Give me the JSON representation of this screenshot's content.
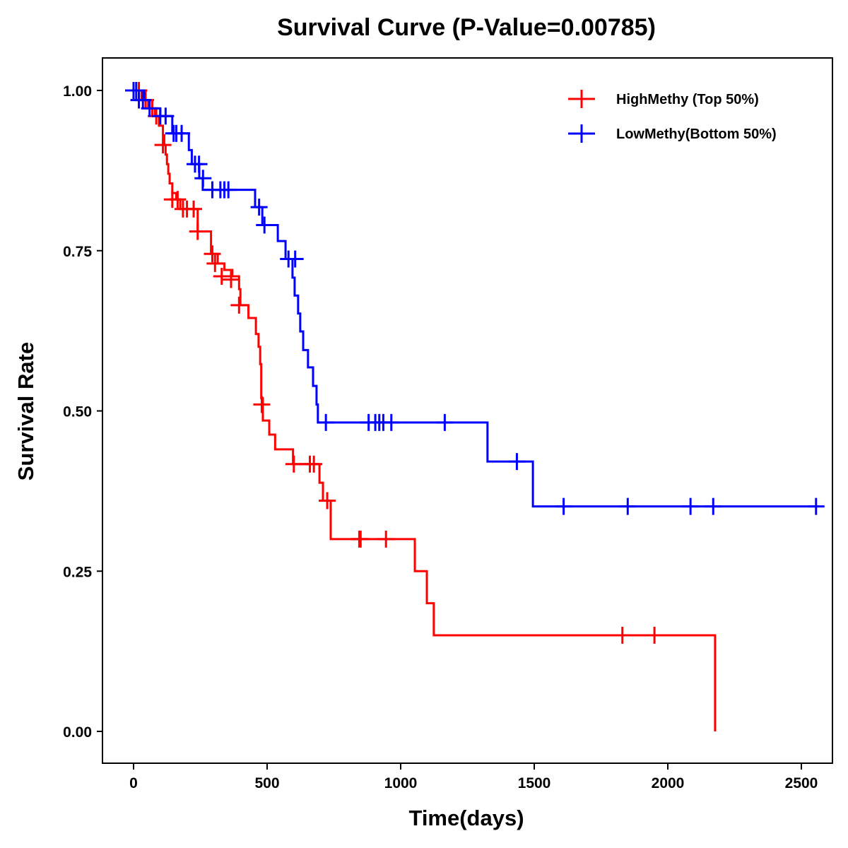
{
  "chart_data": {
    "type": "line",
    "subtype": "kaplan-meier-step",
    "title": "Survival Curve (P-Value=0.00785)",
    "xlabel": "Time(days)",
    "ylabel": "Survival Rate",
    "xlim": [
      -120,
      2600
    ],
    "ylim": [
      -0.05,
      1.05
    ],
    "xticks": [
      0,
      500,
      1000,
      1500,
      2000,
      2500
    ],
    "xtick_labels": [
      "0",
      "500",
      "1000",
      "1500",
      "2000",
      "2500"
    ],
    "yticks": [
      0,
      0.25,
      0.5,
      0.75,
      1.0
    ],
    "ytick_labels": [
      "0.00",
      "0.25",
      "0.50",
      "0.75",
      "1.00"
    ],
    "grid": false,
    "legend_position": "top-right",
    "series": [
      {
        "name": "HighMethy (Top 50%)",
        "color": "#ff0000",
        "steps": [
          [
            0,
            1.0
          ],
          [
            30,
            0.985
          ],
          [
            55,
            0.972
          ],
          [
            80,
            0.96
          ],
          [
            95,
            0.945
          ],
          [
            110,
            0.93
          ],
          [
            115,
            0.915
          ],
          [
            120,
            0.9
          ],
          [
            125,
            0.885
          ],
          [
            130,
            0.87
          ],
          [
            135,
            0.855
          ],
          [
            145,
            0.84
          ],
          [
            160,
            0.83
          ],
          [
            175,
            0.815
          ],
          [
            240,
            0.78
          ],
          [
            290,
            0.745
          ],
          [
            315,
            0.73
          ],
          [
            340,
            0.72
          ],
          [
            370,
            0.71
          ],
          [
            395,
            0.69
          ],
          [
            400,
            0.665
          ],
          [
            430,
            0.645
          ],
          [
            458,
            0.62
          ],
          [
            468,
            0.6
          ],
          [
            474,
            0.573
          ],
          [
            478,
            0.52
          ],
          [
            484,
            0.485
          ],
          [
            508,
            0.463
          ],
          [
            530,
            0.44
          ],
          [
            597,
            0.417
          ],
          [
            696,
            0.388
          ],
          [
            709,
            0.36
          ],
          [
            738,
            0.3
          ],
          [
            1053,
            0.25
          ],
          [
            1098,
            0.2
          ],
          [
            1124,
            0.15
          ],
          [
            2177,
            0.0
          ]
        ],
        "end_time": 2177,
        "censored": [
          [
            20,
            1.0
          ],
          [
            45,
            0.985
          ],
          [
            70,
            0.972
          ],
          [
            85,
            0.96
          ],
          [
            110,
            0.915
          ],
          [
            145,
            0.83
          ],
          [
            165,
            0.83
          ],
          [
            185,
            0.815
          ],
          [
            200,
            0.815
          ],
          [
            225,
            0.815
          ],
          [
            240,
            0.78
          ],
          [
            295,
            0.745
          ],
          [
            305,
            0.73
          ],
          [
            330,
            0.71
          ],
          [
            365,
            0.705
          ],
          [
            395,
            0.665
          ],
          [
            480,
            0.51
          ],
          [
            600,
            0.417
          ],
          [
            660,
            0.417
          ],
          [
            675,
            0.417
          ],
          [
            725,
            0.36
          ],
          [
            845,
            0.3
          ],
          [
            850,
            0.3
          ],
          [
            945,
            0.3
          ],
          [
            1830,
            0.15
          ],
          [
            1950,
            0.15
          ]
        ]
      },
      {
        "name": "LowMethy(Bottom 50%)",
        "color": "#0000ff",
        "steps": [
          [
            0,
            1.0
          ],
          [
            40,
            0.985
          ],
          [
            60,
            0.972
          ],
          [
            100,
            0.96
          ],
          [
            145,
            0.933
          ],
          [
            207,
            0.907
          ],
          [
            218,
            0.885
          ],
          [
            246,
            0.863
          ],
          [
            259,
            0.845
          ],
          [
            455,
            0.818
          ],
          [
            482,
            0.79
          ],
          [
            540,
            0.765
          ],
          [
            569,
            0.737
          ],
          [
            595,
            0.708
          ],
          [
            603,
            0.68
          ],
          [
            616,
            0.652
          ],
          [
            624,
            0.624
          ],
          [
            635,
            0.595
          ],
          [
            653,
            0.568
          ],
          [
            672,
            0.539
          ],
          [
            685,
            0.51
          ],
          [
            690,
            0.482
          ],
          [
            1325,
            0.421
          ],
          [
            1495,
            0.351
          ]
        ],
        "end_time": 2560,
        "censored": [
          [
            0,
            1.0
          ],
          [
            10,
            1.0
          ],
          [
            20,
            0.985
          ],
          [
            35,
            0.985
          ],
          [
            60,
            0.972
          ],
          [
            100,
            0.96
          ],
          [
            120,
            0.96
          ],
          [
            150,
            0.933
          ],
          [
            160,
            0.933
          ],
          [
            180,
            0.933
          ],
          [
            230,
            0.885
          ],
          [
            245,
            0.885
          ],
          [
            260,
            0.863
          ],
          [
            295,
            0.845
          ],
          [
            325,
            0.845
          ],
          [
            340,
            0.845
          ],
          [
            355,
            0.845
          ],
          [
            470,
            0.818
          ],
          [
            490,
            0.79
          ],
          [
            580,
            0.737
          ],
          [
            605,
            0.737
          ],
          [
            720,
            0.482
          ],
          [
            880,
            0.482
          ],
          [
            905,
            0.482
          ],
          [
            920,
            0.482
          ],
          [
            935,
            0.482
          ],
          [
            965,
            0.482
          ],
          [
            1165,
            0.482
          ],
          [
            1435,
            0.421
          ],
          [
            1610,
            0.351
          ],
          [
            1850,
            0.351
          ],
          [
            2085,
            0.351
          ],
          [
            2170,
            0.351
          ],
          [
            2555,
            0.351
          ]
        ]
      }
    ]
  },
  "legend": {
    "items": [
      {
        "label": "HighMethy (Top 50%)",
        "color": "#ff0000"
      },
      {
        "label": "LowMethy(Bottom 50%)",
        "color": "#0000ff"
      }
    ]
  }
}
